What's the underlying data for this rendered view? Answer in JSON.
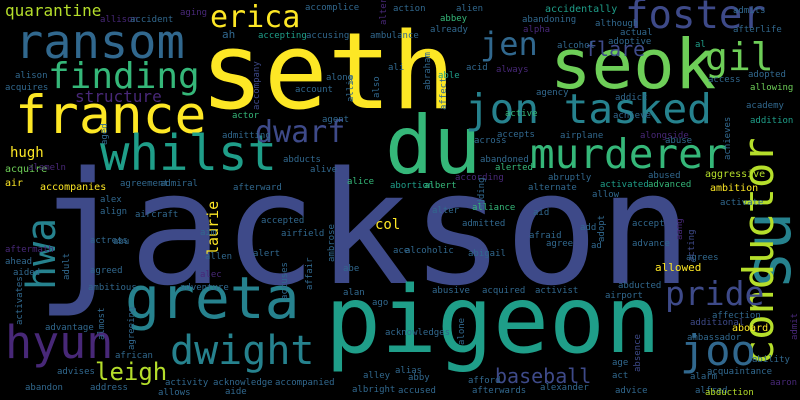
{
  "words": [
    "jackson",
    "seth",
    "pigeon",
    "du",
    "seok",
    "france",
    "ransom",
    "greta",
    "whilst",
    "erica",
    "finding",
    "jen",
    "gil",
    "jon tasked",
    "murderer",
    "foster",
    "flare",
    "su",
    "conductor",
    "dwarf",
    "hwa",
    "hyun",
    "dwight",
    "pride",
    "joo",
    "leigh",
    "baseball",
    "structure",
    "quarantine",
    "hugh",
    "laurie",
    "col",
    "allowed",
    "ambition",
    "aggressive",
    "aboard",
    "accompanies",
    "air",
    "acquire",
    "allison",
    "accident",
    "aging",
    "accomplice",
    "action",
    "alien",
    "accidentally",
    "admits",
    "abbey",
    "abandoning",
    "although",
    "actual",
    "afterlife",
    "ah",
    "accepting",
    "accusing",
    "ambulance",
    "already",
    "alpha",
    "adoptive",
    "al",
    "alcohol",
    "ali",
    "able",
    "acid",
    "always",
    "also",
    "along",
    "account",
    "accompany",
    "actor",
    "agent",
    "admitting",
    "abducts",
    "alive",
    "alice",
    "abortion",
    "albert",
    "according",
    "alerted",
    "abandoned",
    "across",
    "accepts",
    "active",
    "agency",
    "addict",
    "achieve",
    "airplane",
    "access",
    "adopted",
    "allowing",
    "academy",
    "addition",
    "abuse",
    "alongside",
    "abused",
    "advanced",
    "activated",
    "abruptly",
    "alternate",
    "allow",
    "activate",
    "accept",
    "adopt",
    "advance",
    "acting",
    "agrees",
    "aang",
    "alison",
    "acquires",
    "alameln",
    "alex",
    "actress",
    "align",
    "aircraft",
    "aim",
    "abu",
    "airfield",
    "accepted",
    "afterward",
    "alter",
    "adding",
    "admitted",
    "aid",
    "afraid",
    "add",
    "agree",
    "ad",
    "alcoholic",
    "ace",
    "alert",
    "allen",
    "accuses",
    "affair",
    "ambrose",
    "abe",
    "alan",
    "ago",
    "abigail",
    "activist",
    "airport",
    "abducted",
    "abusive",
    "acquired",
    "aftermath",
    "ahead",
    "aided",
    "adult",
    "agreed",
    "ambitious",
    "alec",
    "adventure",
    "activates",
    "almost",
    "agreeing",
    "advantage",
    "additional",
    "affection",
    "ambassador",
    "admit",
    "ability",
    "acquaintance",
    "absence",
    "alone",
    "african",
    "acknowledges",
    "alley",
    "alias",
    "abby",
    "afford",
    "albright",
    "accused",
    "accompanied",
    "acknowledge",
    "activity",
    "allows",
    "aide",
    "abandon",
    "address",
    "advises",
    "alexander",
    "age",
    "act",
    "advice",
    "alfred",
    "abduction",
    "alarm",
    "aaron",
    "afterwards",
    "alliance",
    "admiral",
    "agreement",
    "aged",
    "alters",
    "affect",
    "abraham",
    "allie",
    "achieves",
    "abroad"
  ]
}
